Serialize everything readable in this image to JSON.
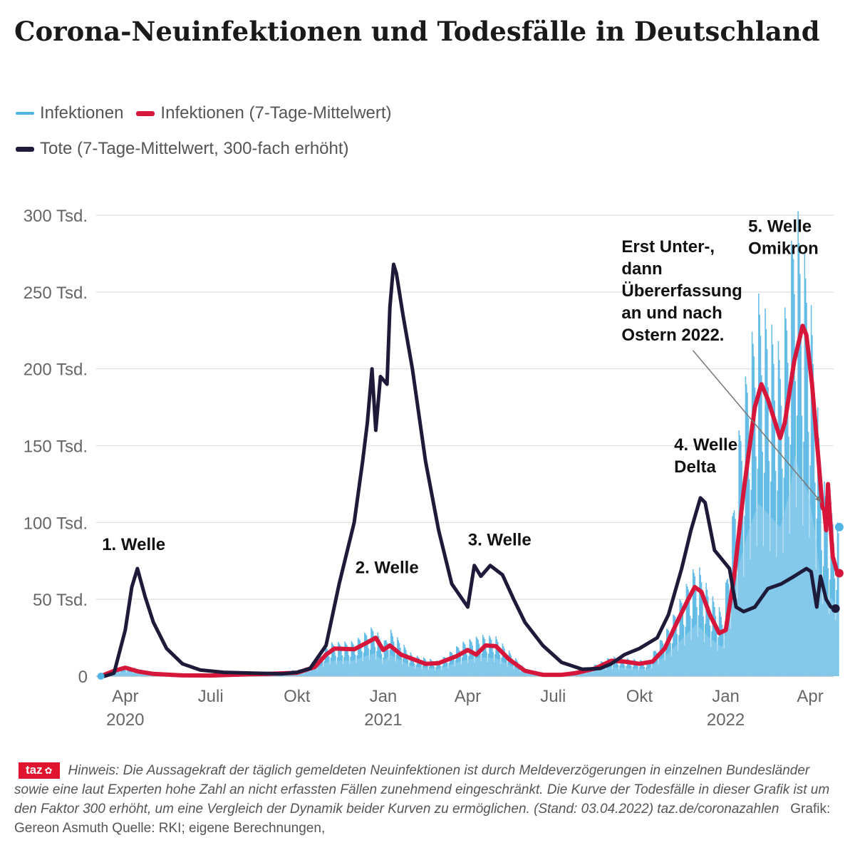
{
  "title": "Corona-Neuinfektionen und Todesfälle in Deutschland",
  "legend": [
    {
      "label": "Infektionen",
      "color": "#4fb3e3"
    },
    {
      "label": "Infektionen (7-Tage-Mittelwert)",
      "color": "#d6163a"
    },
    {
      "label": "Tote (7-Tage-Mittelwert, 300-fach erhöht)",
      "color": "#1e1b3a"
    }
  ],
  "chart_data": {
    "type": "line",
    "ylim": [
      0,
      320000
    ],
    "y_ticks": [
      {
        "value": 0,
        "label": "0"
      },
      {
        "value": 50000,
        "label": "50 Tsd."
      },
      {
        "value": 100000,
        "label": "100 Tsd."
      },
      {
        "value": 150000,
        "label": "150 Tsd."
      },
      {
        "value": 200000,
        "label": "200 Tsd."
      },
      {
        "value": 250000,
        "label": "250 Tsd."
      },
      {
        "value": 300000,
        "label": "300 Tsd."
      }
    ],
    "xlim": [
      "2020-03-01",
      "2022-04-26"
    ],
    "x_ticks": [
      {
        "date": "2020-04-01",
        "label": "Apr",
        "year": "2020"
      },
      {
        "date": "2020-07-01",
        "label": "Juli",
        "year": ""
      },
      {
        "date": "2020-10-01",
        "label": "Okt",
        "year": ""
      },
      {
        "date": "2021-01-01",
        "label": "Jan",
        "year": "2021"
      },
      {
        "date": "2021-04-01",
        "label": "Apr",
        "year": ""
      },
      {
        "date": "2021-07-01",
        "label": "Juli",
        "year": ""
      },
      {
        "date": "2021-10-01",
        "label": "Okt",
        "year": ""
      },
      {
        "date": "2022-01-01",
        "label": "Jan",
        "year": "2022"
      },
      {
        "date": "2022-04-01",
        "label": "Apr",
        "year": ""
      }
    ],
    "grid": true,
    "legend_position": "top-left",
    "series": [
      {
        "name": "Infektionen (7-Tage-Mittelwert)",
        "color": "#d6163a",
        "points": [
          [
            "2020-03-06",
            0
          ],
          [
            "2020-03-20",
            3500
          ],
          [
            "2020-04-01",
            5500
          ],
          [
            "2020-04-15",
            3000
          ],
          [
            "2020-05-01",
            1500
          ],
          [
            "2020-06-01",
            500
          ],
          [
            "2020-07-01",
            400
          ],
          [
            "2020-08-10",
            1200
          ],
          [
            "2020-09-01",
            1500
          ],
          [
            "2020-10-01",
            2200
          ],
          [
            "2020-10-20",
            6000
          ],
          [
            "2020-11-01",
            14000
          ],
          [
            "2020-11-10",
            18000
          ],
          [
            "2020-12-01",
            17500
          ],
          [
            "2020-12-15",
            22000
          ],
          [
            "2020-12-24",
            25000
          ],
          [
            "2021-01-01",
            17000
          ],
          [
            "2021-01-08",
            20000
          ],
          [
            "2021-01-20",
            14000
          ],
          [
            "2021-02-15",
            8000
          ],
          [
            "2021-03-01",
            8500
          ],
          [
            "2021-03-20",
            13000
          ],
          [
            "2021-04-01",
            17000
          ],
          [
            "2021-04-10",
            14000
          ],
          [
            "2021-04-20",
            20000
          ],
          [
            "2021-05-01",
            19500
          ],
          [
            "2021-05-15",
            11000
          ],
          [
            "2021-06-01",
            3500
          ],
          [
            "2021-06-20",
            900
          ],
          [
            "2021-07-10",
            900
          ],
          [
            "2021-07-25",
            2000
          ],
          [
            "2021-08-15",
            5000
          ],
          [
            "2021-09-01",
            10000
          ],
          [
            "2021-09-15",
            9500
          ],
          [
            "2021-10-01",
            8000
          ],
          [
            "2021-10-15",
            9500
          ],
          [
            "2021-10-28",
            18000
          ],
          [
            "2021-11-10",
            35000
          ],
          [
            "2021-11-22",
            50000
          ],
          [
            "2021-11-29",
            58000
          ],
          [
            "2021-12-06",
            55000
          ],
          [
            "2021-12-15",
            40000
          ],
          [
            "2021-12-25",
            28000
          ],
          [
            "2022-01-01",
            30000
          ],
          [
            "2022-01-10",
            65000
          ],
          [
            "2022-01-20",
            120000
          ],
          [
            "2022-02-01",
            175000
          ],
          [
            "2022-02-08",
            190000
          ],
          [
            "2022-02-15",
            180000
          ],
          [
            "2022-02-28",
            155000
          ],
          [
            "2022-03-05",
            165000
          ],
          [
            "2022-03-15",
            205000
          ],
          [
            "2022-03-24",
            228000
          ],
          [
            "2022-03-28",
            222000
          ],
          [
            "2022-04-03",
            190000
          ],
          [
            "2022-04-10",
            140000
          ],
          [
            "2022-04-14",
            110000
          ],
          [
            "2022-04-16",
            108000
          ],
          [
            "2022-04-18",
            95000
          ],
          [
            "2022-04-20",
            125000
          ],
          [
            "2022-04-22",
            105000
          ],
          [
            "2022-04-25",
            78000
          ],
          [
            "2022-04-30",
            67000
          ],
          [
            "2022-05-02",
            67000
          ]
        ]
      },
      {
        "name": "Tote (7-Tage-Mittelwert, 300-fach erhöht)",
        "color": "#1e1b3a",
        "points": [
          [
            "2020-03-10",
            0
          ],
          [
            "2020-03-20",
            2000
          ],
          [
            "2020-04-01",
            30000
          ],
          [
            "2020-04-08",
            58000
          ],
          [
            "2020-04-14",
            70000
          ],
          [
            "2020-04-22",
            52000
          ],
          [
            "2020-05-01",
            35000
          ],
          [
            "2020-05-15",
            18000
          ],
          [
            "2020-06-01",
            8000
          ],
          [
            "2020-06-20",
            4000
          ],
          [
            "2020-07-15",
            2500
          ],
          [
            "2020-08-15",
            2000
          ],
          [
            "2020-09-15",
            1500
          ],
          [
            "2020-10-01",
            2500
          ],
          [
            "2020-10-15",
            5000
          ],
          [
            "2020-11-01",
            20000
          ],
          [
            "2020-11-15",
            60000
          ],
          [
            "2020-12-01",
            100000
          ],
          [
            "2020-12-10",
            140000
          ],
          [
            "2020-12-15",
            165000
          ],
          [
            "2020-12-20",
            200000
          ],
          [
            "2020-12-24",
            160000
          ],
          [
            "2020-12-29",
            195000
          ],
          [
            "2021-01-05",
            190000
          ],
          [
            "2021-01-08",
            240000
          ],
          [
            "2021-01-12",
            268000
          ],
          [
            "2021-01-15",
            262000
          ],
          [
            "2021-01-22",
            235000
          ],
          [
            "2021-02-01",
            200000
          ],
          [
            "2021-02-15",
            140000
          ],
          [
            "2021-03-01",
            95000
          ],
          [
            "2021-03-15",
            60000
          ],
          [
            "2021-04-01",
            45000
          ],
          [
            "2021-04-08",
            72000
          ],
          [
            "2021-04-15",
            65000
          ],
          [
            "2021-04-25",
            72000
          ],
          [
            "2021-05-08",
            66000
          ],
          [
            "2021-05-20",
            50000
          ],
          [
            "2021-06-01",
            35000
          ],
          [
            "2021-06-20",
            20000
          ],
          [
            "2021-07-10",
            9000
          ],
          [
            "2021-08-01",
            4500
          ],
          [
            "2021-08-20",
            5000
          ],
          [
            "2021-09-01",
            8000
          ],
          [
            "2021-09-15",
            14000
          ],
          [
            "2021-10-01",
            18000
          ],
          [
            "2021-10-20",
            25000
          ],
          [
            "2021-11-01",
            40000
          ],
          [
            "2021-11-15",
            70000
          ],
          [
            "2021-11-25",
            95000
          ],
          [
            "2021-12-05",
            116000
          ],
          [
            "2021-12-10",
            113000
          ],
          [
            "2021-12-20",
            82000
          ],
          [
            "2021-12-28",
            76000
          ],
          [
            "2022-01-05",
            70000
          ],
          [
            "2022-01-12",
            45000
          ],
          [
            "2022-01-20",
            42000
          ],
          [
            "2022-02-01",
            45000
          ],
          [
            "2022-02-15",
            57000
          ],
          [
            "2022-03-01",
            60000
          ],
          [
            "2022-03-15",
            65000
          ],
          [
            "2022-03-28",
            70000
          ],
          [
            "2022-04-02",
            68000
          ],
          [
            "2022-04-08",
            45000
          ],
          [
            "2022-04-12",
            65000
          ],
          [
            "2022-04-18",
            50000
          ],
          [
            "2022-04-23",
            45000
          ],
          [
            "2022-04-28",
            44000
          ]
        ]
      }
    ],
    "daily_infections_envelope": [
      [
        "2020-03-06",
        0
      ],
      [
        "2020-03-25",
        6000
      ],
      [
        "2020-04-05",
        6500
      ],
      [
        "2020-05-01",
        2000
      ],
      [
        "2020-06-15",
        500
      ],
      [
        "2020-09-01",
        2000
      ],
      [
        "2020-10-10",
        5000
      ],
      [
        "2020-10-25",
        14000
      ],
      [
        "2020-11-05",
        22000
      ],
      [
        "2020-12-01",
        23000
      ],
      [
        "2020-12-15",
        30000
      ],
      [
        "2020-12-22",
        33000
      ],
      [
        "2021-01-01",
        22000
      ],
      [
        "2021-01-08",
        31000
      ],
      [
        "2021-02-01",
        14000
      ],
      [
        "2021-03-01",
        10000
      ],
      [
        "2021-03-25",
        22000
      ],
      [
        "2021-04-15",
        27000
      ],
      [
        "2021-05-01",
        26000
      ],
      [
        "2021-06-01",
        5000
      ],
      [
        "2021-07-01",
        1000
      ],
      [
        "2021-08-01",
        3500
      ],
      [
        "2021-09-01",
        13000
      ],
      [
        "2021-09-15",
        12000
      ],
      [
        "2021-10-10",
        10000
      ],
      [
        "2021-11-01",
        33000
      ],
      [
        "2021-11-20",
        60000
      ],
      [
        "2021-12-01",
        75000
      ],
      [
        "2021-12-15",
        55000
      ],
      [
        "2021-12-28",
        42000
      ],
      [
        "2022-01-05",
        80000
      ],
      [
        "2022-01-15",
        160000
      ],
      [
        "2022-01-25",
        210000
      ],
      [
        "2022-02-05",
        249000
      ],
      [
        "2022-02-15",
        235000
      ],
      [
        "2022-02-28",
        215000
      ],
      [
        "2022-03-10",
        265000
      ],
      [
        "2022-03-16",
        320000
      ],
      [
        "2022-03-22",
        285000
      ],
      [
        "2022-03-30",
        265000
      ],
      [
        "2022-04-06",
        210000
      ],
      [
        "2022-04-12",
        140000
      ],
      [
        "2022-04-18",
        120000
      ],
      [
        "2022-04-25",
        110000
      ],
      [
        "2022-05-01",
        98000
      ]
    ],
    "last_point": [
      "2022-05-02",
      97000
    ],
    "annotations": [
      {
        "lines": [
          "1. Welle"
        ],
        "date": "2020-04-10",
        "value": 82000,
        "anchor": "middle"
      },
      {
        "lines": [
          "2. Welle"
        ],
        "date": "2021-01-05",
        "value": 67000,
        "anchor": "middle"
      },
      {
        "lines": [
          "3. Welle"
        ],
        "date": "2021-05-05",
        "value": 85000,
        "anchor": "middle"
      },
      {
        "lines": [
          "4. Welle",
          "Delta"
        ],
        "date": "2021-11-07",
        "value": 147000,
        "anchor": "start"
      },
      {
        "lines": [
          "5. Welle",
          "Omikron"
        ],
        "date": "2022-01-25",
        "value": 289000,
        "anchor": "start"
      },
      {
        "lines": [
          "Erst Unter-,",
          "dann",
          "Übererfassung",
          "an und nach",
          "Ostern 2022."
        ],
        "date": "2021-09-12",
        "value": 276000,
        "anchor": "start",
        "arrow_to": [
          "2022-04-13",
          113000
        ],
        "arrow_from": [
          "2021-11-27",
          212000
        ]
      }
    ]
  },
  "footer": {
    "logo": "taz",
    "note": "Hinweis: Die Aussagekraft der täglich gemeldeten Neuinfektionen ist durch Meldeverzögerungen in einzelnen Bundesländer sowie eine laut Experten hohe Zahl an nicht erfassten Fällen zunehmend eingeschränkt. Die Kurve der Todesfälle in dieser Grafik ist um den Faktor 300 erhöht, um eine Vergleich der Dynamik beider Kurven zu ermöglichen. (Stand: 03.04.2022) taz.de/coronazahlen",
    "credits": "Grafik: Gereon Asmuth    Quelle: RKI; eigene Berechnungen,"
  }
}
